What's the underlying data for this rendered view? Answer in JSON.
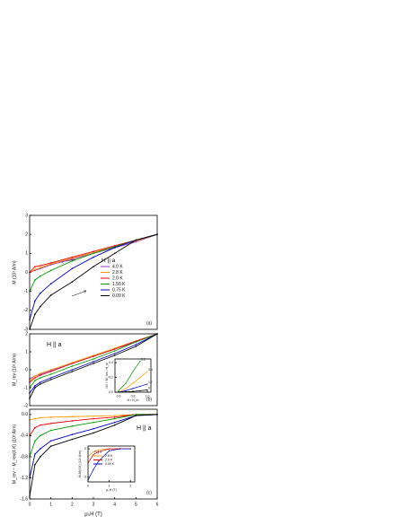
{
  "chart_data": [
    {
      "type": "line",
      "ylabel": "M (10³ A/m)",
      "panel_label": "(a)",
      "legend_title": "H || a",
      "x": [
        0,
        0.25,
        0.5,
        1,
        2,
        3,
        4,
        5,
        6
      ],
      "xlim": [
        0,
        6
      ],
      "ylim": [
        -3,
        3
      ],
      "yticks": [
        -3,
        -2,
        -1,
        0,
        1,
        2,
        3
      ],
      "series": [
        {
          "name": "4.0 K",
          "color": "#9933cc",
          "values": [
            0,
            0.1,
            0.2,
            0.4,
            0.7,
            1.0,
            1.3,
            1.6,
            2.0
          ]
        },
        {
          "name": "2.8 K",
          "color": "#ff9900",
          "values": [
            0,
            0.15,
            0.25,
            0.45,
            0.75,
            1.05,
            1.35,
            1.65,
            2.0
          ]
        },
        {
          "name": "2.0 K",
          "color": "#ee0000",
          "values": [
            0,
            0.3,
            0.35,
            0.5,
            0.8,
            1.1,
            1.4,
            1.7,
            2.0
          ]
        },
        {
          "name": "1.50 K",
          "color": "#009900",
          "values": [
            -1,
            -0.4,
            -0.2,
            0.1,
            0.6,
            1.0,
            1.35,
            1.7,
            2.0
          ]
        },
        {
          "name": "0.75 K",
          "color": "#0000cc",
          "values": [
            -2.5,
            -1.5,
            -1.1,
            -0.6,
            0.2,
            0.8,
            1.3,
            1.7,
            2.0
          ]
        },
        {
          "name": "0.09 K",
          "color": "#000000",
          "values": [
            -3,
            -2.2,
            -1.8,
            -1.2,
            -0.5,
            0.3,
            1.0,
            1.7,
            2.0
          ]
        }
      ]
    },
    {
      "type": "line",
      "ylabel": "M_rev (10³ A/m)",
      "panel_label": "(b)",
      "field_label": "H || a",
      "x": [
        0,
        0.25,
        0.5,
        1,
        2,
        3,
        4,
        5,
        6
      ],
      "xlim": [
        0,
        6
      ],
      "ylim": [
        -2,
        2
      ],
      "yticks": [
        -2,
        -1,
        0,
        1,
        2
      ],
      "series": [
        {
          "color": "#9933cc",
          "values": [
            -0.5,
            -0.35,
            -0.25,
            -0.05,
            0.35,
            0.75,
            1.15,
            1.55,
            2.0
          ]
        },
        {
          "color": "#ff9900",
          "values": [
            -0.6,
            -0.35,
            -0.2,
            0,
            0.4,
            0.8,
            1.2,
            1.6,
            2.0
          ]
        },
        {
          "color": "#ee0000",
          "values": [
            -0.7,
            -0.45,
            -0.3,
            -0.1,
            0.35,
            0.75,
            1.15,
            1.6,
            2.0
          ]
        },
        {
          "color": "#009900",
          "values": [
            -1.0,
            -0.6,
            -0.45,
            -0.25,
            0.2,
            0.6,
            1.05,
            1.55,
            2.0
          ]
        },
        {
          "color": "#0000cc",
          "values": [
            -1.3,
            -0.9,
            -0.7,
            -0.45,
            0,
            0.45,
            0.9,
            1.4,
            2.0
          ]
        },
        {
          "color": "#000000",
          "values": [
            -1.6,
            -1.0,
            -0.8,
            -0.55,
            -0.1,
            0.35,
            0.8,
            1.3,
            2.0
          ]
        }
      ]
    },
    {
      "type": "line",
      "ylabel": "M_rev − M_rev(4 K) (10³ A/m)",
      "panel_label": "(c)",
      "field_label": "H || a",
      "xlabel": "μ₀H (T)",
      "x": [
        0,
        0.25,
        0.5,
        1,
        2,
        3,
        4,
        5,
        6
      ],
      "xlim": [
        0,
        6
      ],
      "xticks": [
        0,
        1,
        2,
        3,
        4,
        5,
        6
      ],
      "ylim": [
        -1.6,
        0.1
      ],
      "yticks": [
        -1.6,
        -1.2,
        -0.8,
        -0.4,
        {
          "value": 0,
          "label": "0.0"
        }
      ],
      "series": [
        {
          "color": "#ff9900",
          "values": [
            -0.1,
            -0.08,
            -0.06,
            -0.05,
            -0.04,
            -0.03,
            -0.02,
            0,
            0
          ]
        },
        {
          "color": "#ee0000",
          "values": [
            -0.4,
            -0.25,
            -0.2,
            -0.17,
            -0.12,
            -0.08,
            -0.05,
            0,
            0
          ]
        },
        {
          "color": "#009900",
          "values": [
            -0.8,
            -0.5,
            -0.4,
            -0.3,
            -0.22,
            -0.15,
            -0.08,
            0,
            0
          ]
        },
        {
          "color": "#0000cc",
          "values": [
            -1.2,
            -0.75,
            -0.65,
            -0.5,
            -0.38,
            -0.27,
            -0.15,
            -0.02,
            0
          ]
        },
        {
          "color": "#000000",
          "values": [
            -1.55,
            -0.95,
            -0.8,
            -0.6,
            -0.47,
            -0.35,
            -0.2,
            -0.02,
            0
          ]
        }
      ]
    },
    {
      "type": "line",
      "ylabel": "10² × M_rev / H_m",
      "xlabel": "H / H_m",
      "x": [
        0.6,
        0.7,
        0.8,
        0.9,
        1.0
      ],
      "xlim": [
        0.55,
        1.05
      ],
      "xticks": [
        0.6,
        0.8,
        {
          "value": 1,
          "label": "1.0"
        }
      ],
      "ylim": [
        0,
        0.45
      ],
      "yticks": [
        {
          "value": 0,
          "label": "0.0"
        },
        0.2,
        0.4
      ],
      "series": [
        {
          "name": "5.2",
          "color": "#009900",
          "values": [
            0.02,
            0.12,
            0.28,
            0.42,
            null
          ]
        },
        {
          "name": "3.4",
          "color": "#ff9900",
          "values": [
            0,
            0.05,
            0.12,
            0.2,
            0.28
          ]
        },
        {
          "name": "1.7",
          "color": "#0000cc",
          "values": [
            0,
            0.02,
            0.05,
            0.08,
            0.11
          ]
        },
        {
          "name": "0",
          "color": "#000000",
          "values": [
            0,
            0.005,
            0.01,
            0.02,
            0.03
          ]
        }
      ]
    },
    {
      "type": "line",
      "ylabel": "M-M(4 K) (10³ A/m)",
      "xlabel": "μ₀H (T)",
      "legend_title": "H || a",
      "x": [
        0,
        0.25,
        0.5,
        1,
        1.5,
        2
      ],
      "xlim": [
        0,
        2.2
      ],
      "xticks": [
        0,
        1,
        2
      ],
      "ylim": [
        -3.5,
        0.3
      ],
      "yticks": [
        -3,
        0
      ],
      "series": [
        {
          "name": "2.8 K",
          "color": "#ff9900",
          "values": [
            -0.8,
            -0.3,
            -0.1,
            0,
            0,
            0
          ]
        },
        {
          "name": "2.0 K",
          "color": "#ee0000",
          "values": [
            -1.5,
            -0.6,
            -0.3,
            0,
            0,
            0
          ]
        },
        {
          "name": "0.09 K",
          "color": "#0000cc",
          "values": [
            -3.3,
            -2.2,
            -1.3,
            -0.2,
            0,
            0
          ]
        }
      ]
    }
  ]
}
